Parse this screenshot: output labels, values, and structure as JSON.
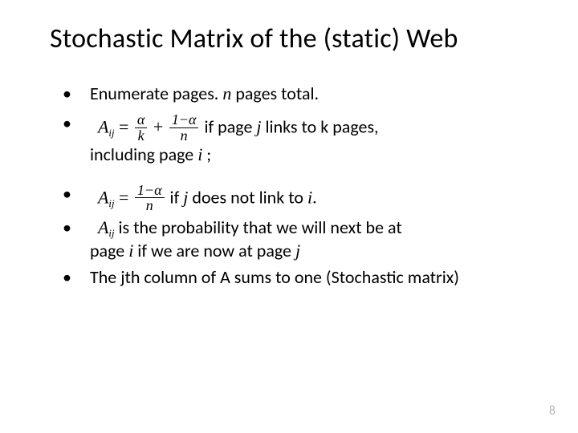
{
  "page_number": "8",
  "title": "Stochastic Matrix of the (static) Web",
  "background_color": "#ffffff",
  "text_color": "#000000",
  "page_num_color": "#b7b7b7",
  "fonts": {
    "body": "Calibri",
    "math": "Cambria Math"
  },
  "title_fontsize_pt": 34,
  "body_fontsize_pt": 22,
  "math": {
    "A": "A",
    "sub_ij": "ij",
    "alpha": "α",
    "k": "k",
    "n": "n",
    "one_minus_alpha": "1−α",
    "i": "i",
    "j": "j"
  },
  "bullets": {
    "b1_pre": "Enumerate pages. ",
    "b1_post": " pages total.",
    "b2_eq_space": " = ",
    "b2_plus": " + ",
    "b2_mid": " if page ",
    "b2_mid2": " links to ",
    "b2_end": "  pages,",
    "b2_line2_pre": "including page ",
    "b2_line2_post": " ;",
    "b3_eq_space": " = ",
    "b3_mid": " if ",
    "b3_mid2": "  does not link to ",
    "b3_end": ".",
    "b4_pre": " is the probability that we will next be at",
    "b4_line2_pre": "page ",
    "b4_line2_mid": " if we are now at page ",
    "b5": "The jth column of A sums to one (Stochastic matrix)"
  }
}
